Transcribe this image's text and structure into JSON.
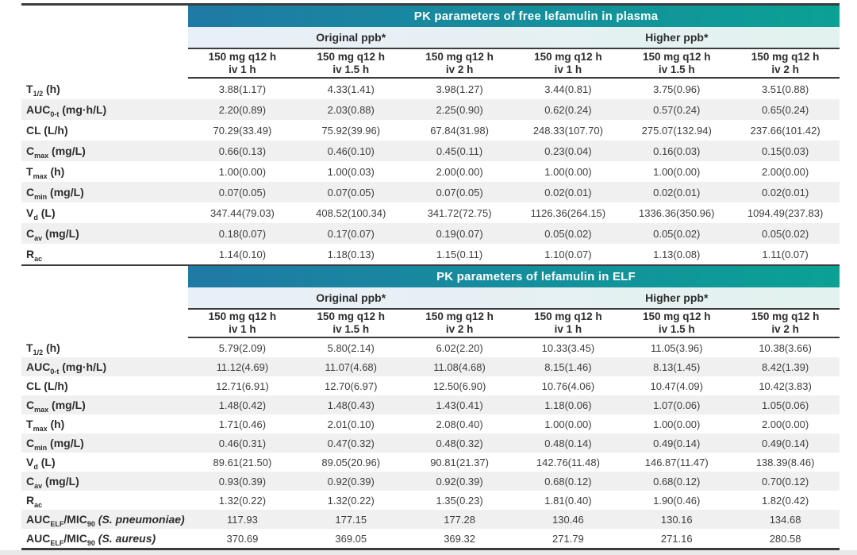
{
  "colors": {
    "teal_left": "#1f7aa5",
    "teal_right": "#0ba195",
    "band_left": "#e9eff8",
    "band_right": "#e2f2ee",
    "rule": "#3c3c3c",
    "stripe": "#f0f0f0",
    "ink": "#2d2d2d",
    "num": "#3e3e3e",
    "page_strip": "#e9e9e9"
  },
  "tables": [
    {
      "title": "PK parameters of free lefamulin in plasma",
      "group_headers": [
        "Original ppb*",
        "Higher ppb*"
      ],
      "column_headers": [
        {
          "line1": "150 mg q12 h",
          "line2": "iv 1 h"
        },
        {
          "line1": "150 mg q12 h",
          "line2": "iv 1.5 h"
        },
        {
          "line1": "150 mg q12 h",
          "line2": "iv 2 h"
        },
        {
          "line1": "150 mg q12 h",
          "line2": "iv 1 h"
        },
        {
          "line1": "150 mg q12 h",
          "line2": "iv 1.5 h"
        },
        {
          "line1": "150 mg q12 h",
          "line2": "iv 2 h"
        }
      ],
      "rows": [
        {
          "label": [
            {
              "t": "T"
            },
            {
              "s": "1/2"
            },
            {
              "t": " (h)"
            }
          ],
          "values": [
            "3.88(1.17)",
            "4.33(1.41)",
            "3.98(1.27)",
            "3.44(0.81)",
            "3.75(0.96)",
            "3.51(0.88)"
          ]
        },
        {
          "label": [
            {
              "t": "AUC"
            },
            {
              "s": "0-t"
            },
            {
              "t": " (mg·h/L)"
            }
          ],
          "values": [
            "2.20(0.89)",
            "2.03(0.88)",
            "2.25(0.90)",
            "0.62(0.24)",
            "0.57(0.24)",
            "0.65(0.24)"
          ]
        },
        {
          "label": [
            {
              "t": "CL (L/h)"
            }
          ],
          "values": [
            "70.29(33.49)",
            "75.92(39.96)",
            "67.84(31.98)",
            "248.33(107.70)",
            "275.07(132.94)",
            "237.66(101.42)"
          ]
        },
        {
          "label": [
            {
              "t": "C"
            },
            {
              "s": "max"
            },
            {
              "t": " (mg/L)"
            }
          ],
          "values": [
            "0.66(0.13)",
            "0.46(0.10)",
            "0.45(0.11)",
            "0.23(0.04)",
            "0.16(0.03)",
            "0.15(0.03)"
          ]
        },
        {
          "label": [
            {
              "t": "T"
            },
            {
              "s": "max"
            },
            {
              "t": " (h)"
            }
          ],
          "values": [
            "1.00(0.00)",
            "1.00(0.03)",
            "2.00(0.00)",
            "1.00(0.00)",
            "1.00(0.00)",
            "2.00(0.00)"
          ]
        },
        {
          "label": [
            {
              "t": "C"
            },
            {
              "s": "min"
            },
            {
              "t": " (mg/L)"
            }
          ],
          "values": [
            "0.07(0.05)",
            "0.07(0.05)",
            "0.07(0.05)",
            "0.02(0.01)",
            "0.02(0.01)",
            "0.02(0.01)"
          ]
        },
        {
          "label": [
            {
              "t": "V"
            },
            {
              "s": "d"
            },
            {
              "t": " (L)"
            }
          ],
          "values": [
            "347.44(79.03)",
            "408.52(100.34)",
            "341.72(72.75)",
            "1126.36(264.15)",
            "1336.36(350.96)",
            "1094.49(237.83)"
          ]
        },
        {
          "label": [
            {
              "t": "C"
            },
            {
              "s": "av"
            },
            {
              "t": " (mg/L)"
            }
          ],
          "values": [
            "0.18(0.07)",
            "0.17(0.07)",
            "0.19(0.07)",
            "0.05(0.02)",
            "0.05(0.02)",
            "0.05(0.02)"
          ]
        },
        {
          "label": [
            {
              "t": "R"
            },
            {
              "s": "ac"
            }
          ],
          "values": [
            "1.14(0.10)",
            "1.18(0.13)",
            "1.15(0.11)",
            "1.10(0.07)",
            "1.13(0.08)",
            "1.11(0.07)"
          ]
        }
      ]
    },
    {
      "title": "PK parameters of lefamulin in ELF",
      "group_headers": [
        "Original ppb*",
        "Higher ppb*"
      ],
      "column_headers": [
        {
          "line1": "150 mg q12 h",
          "line2": "iv 1 h"
        },
        {
          "line1": "150 mg q12 h",
          "line2": "iv 1.5 h"
        },
        {
          "line1": "150 mg q12 h",
          "line2": "iv 2 h"
        },
        {
          "line1": "150 mg q12 h",
          "line2": "iv 1 h"
        },
        {
          "line1": "150 mg q12 h",
          "line2": "iv 1.5 h"
        },
        {
          "line1": "150 mg q12 h",
          "line2": "iv 2 h"
        }
      ],
      "rows": [
        {
          "label": [
            {
              "t": "T"
            },
            {
              "s": "1/2"
            },
            {
              "t": " (h)"
            }
          ],
          "values": [
            "5.79(2.09)",
            "5.80(2.14)",
            "6.02(2.20)",
            "10.33(3.45)",
            "11.05(3.96)",
            "10.38(3.66)"
          ]
        },
        {
          "label": [
            {
              "t": "AUC"
            },
            {
              "s": "0-t"
            },
            {
              "t": " (mg·h/L)"
            }
          ],
          "values": [
            "11.12(4.69)",
            "11.07(4.68)",
            "11.08(4.68)",
            "8.15(1.46)",
            "8.13(1.45)",
            "8.42(1.39)"
          ]
        },
        {
          "label": [
            {
              "t": "CL (L/h)"
            }
          ],
          "values": [
            "12.71(6.91)",
            "12.70(6.97)",
            "12.50(6.90)",
            "10.76(4.06)",
            "10.47(4.09)",
            "10.42(3.83)"
          ]
        },
        {
          "label": [
            {
              "t": "C"
            },
            {
              "s": "max"
            },
            {
              "t": " (mg/L)"
            }
          ],
          "values": [
            "1.48(0.42)",
            "1.48(0.43)",
            "1.43(0.41)",
            "1.18(0.06)",
            "1.07(0.06)",
            "1.05(0.06)"
          ]
        },
        {
          "label": [
            {
              "t": "T"
            },
            {
              "s": "max"
            },
            {
              "t": " (h)"
            }
          ],
          "values": [
            "1.71(0.46)",
            "2.01(0.10)",
            "2.08(0.40)",
            "1.00(0.00)",
            "1.00(0.00)",
            "2.00(0.00)"
          ]
        },
        {
          "label": [
            {
              "t": "C"
            },
            {
              "s": "min"
            },
            {
              "t": " (mg/L)"
            }
          ],
          "values": [
            "0.46(0.31)",
            "0.47(0.32)",
            "0.48(0.32)",
            "0.48(0.14)",
            "0.49(0.14)",
            "0.49(0.14)"
          ]
        },
        {
          "label": [
            {
              "t": "V"
            },
            {
              "s": "d"
            },
            {
              "t": " (L)"
            }
          ],
          "values": [
            "89.61(21.50)",
            "89.05(20.96)",
            "90.81(21.37)",
            "142.76(11.48)",
            "146.87(11.47)",
            "138.39(8.46)"
          ]
        },
        {
          "label": [
            {
              "t": "C"
            },
            {
              "s": "av"
            },
            {
              "t": " (mg/L)"
            }
          ],
          "values": [
            "0.93(0.39)",
            "0.92(0.39)",
            "0.92(0.39)",
            "0.68(0.12)",
            "0.68(0.12)",
            "0.70(0.12)"
          ]
        },
        {
          "label": [
            {
              "t": "R"
            },
            {
              "s": "ac"
            }
          ],
          "values": [
            "1.32(0.22)",
            "1.32(0.22)",
            "1.35(0.23)",
            "1.81(0.40)",
            "1.90(0.46)",
            "1.82(0.42)"
          ]
        },
        {
          "label": [
            {
              "t": "AUC"
            },
            {
              "s": "ELF"
            },
            {
              "t": "/MIC"
            },
            {
              "s": "90"
            },
            {
              "i": " (S. pneumoniae)"
            }
          ],
          "values": [
            "117.93",
            "177.15",
            "177.28",
            "130.46",
            "130.16",
            "134.68"
          ]
        },
        {
          "label": [
            {
              "t": "AUC"
            },
            {
              "s": "ELF"
            },
            {
              "t": "/MIC"
            },
            {
              "s": "90"
            },
            {
              "i": " (S. aureus)"
            }
          ],
          "values": [
            "370.69",
            "369.05",
            "369.32",
            "271.79",
            "271.16",
            "280.58"
          ]
        }
      ]
    }
  ]
}
